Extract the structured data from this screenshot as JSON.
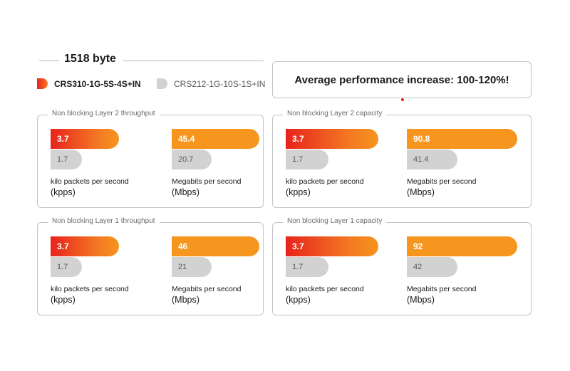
{
  "header": {
    "title": "1518 byte"
  },
  "legend": [
    {
      "label": "CRS310-1G-5S-4S+IN",
      "color": "#e8231c",
      "bold": true
    },
    {
      "label": "CRS212-1G-10S-1S+IN",
      "color": "#d2d2d2",
      "bold": false
    }
  ],
  "callout": {
    "text": "Average performance increase: 100-120%!"
  },
  "chart_data": [
    {
      "type": "bar",
      "title": "Non blocking Layer 2 throughput",
      "groups": [
        {
          "unit_label": "kilo packets per second",
          "unit_abbr": "(kpps)",
          "values": [
            3.7,
            1.7
          ],
          "labels": [
            "3.7",
            "1.7"
          ],
          "max": 6.0
        },
        {
          "unit_label": "Megabits per second",
          "unit_abbr": "(Mbps)",
          "values": [
            45.4,
            20.7
          ],
          "labels": [
            "45.4",
            "20.7"
          ],
          "max": 57.3
        }
      ]
    },
    {
      "type": "bar",
      "title": "Non blocking Layer 2 capacity",
      "groups": [
        {
          "unit_label": "kilo packets per second",
          "unit_abbr": "(kpps)",
          "values": [
            3.7,
            1.7
          ],
          "labels": [
            "3.7",
            "1.7"
          ],
          "max": 4.4
        },
        {
          "unit_label": "Megabits per second",
          "unit_abbr": "(Mbps)",
          "values": [
            90.8,
            41.4
          ],
          "labels": [
            "90.8",
            "41.4"
          ],
          "max": 90.8
        }
      ]
    },
    {
      "type": "bar",
      "title": "Non blocking Layer 1 throughput",
      "groups": [
        {
          "unit_label": "kilo packets per second",
          "unit_abbr": "(kpps)",
          "values": [
            3.7,
            1.7
          ],
          "labels": [
            "3.7",
            "1.7"
          ],
          "max": 6.0
        },
        {
          "unit_label": "Megabits per second",
          "unit_abbr": "(Mbps)",
          "values": [
            46,
            21
          ],
          "labels": [
            "46",
            "21"
          ],
          "max": 58
        }
      ]
    },
    {
      "type": "bar",
      "title": "Non blocking Layer 1 capacity",
      "groups": [
        {
          "unit_label": "kilo packets per second",
          "unit_abbr": "(kpps)",
          "values": [
            3.7,
            1.7
          ],
          "labels": [
            "3.7",
            "1.7"
          ],
          "max": 4.4
        },
        {
          "unit_label": "Megabits per second",
          "unit_abbr": "(Mbps)",
          "values": [
            92,
            42
          ],
          "labels": [
            "92",
            "42"
          ],
          "max": 92
        }
      ]
    }
  ]
}
